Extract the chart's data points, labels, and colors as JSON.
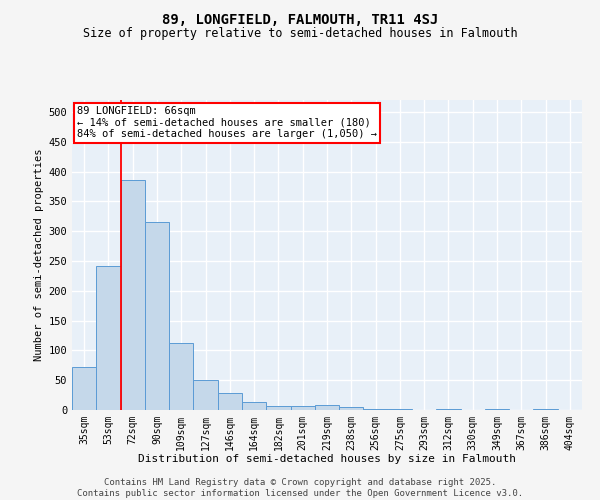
{
  "title1": "89, LONGFIELD, FALMOUTH, TR11 4SJ",
  "title2": "Size of property relative to semi-detached houses in Falmouth",
  "xlabel": "Distribution of semi-detached houses by size in Falmouth",
  "ylabel": "Number of semi-detached properties",
  "categories": [
    "35sqm",
    "53sqm",
    "72sqm",
    "90sqm",
    "109sqm",
    "127sqm",
    "146sqm",
    "164sqm",
    "182sqm",
    "201sqm",
    "219sqm",
    "238sqm",
    "256sqm",
    "275sqm",
    "293sqm",
    "312sqm",
    "330sqm",
    "349sqm",
    "367sqm",
    "386sqm",
    "404sqm"
  ],
  "values": [
    72,
    242,
    385,
    315,
    113,
    50,
    29,
    14,
    7,
    7,
    8,
    5,
    2,
    1,
    0,
    2,
    0,
    1,
    0,
    1,
    0
  ],
  "bar_color": "#c5d8ea",
  "bar_edge_color": "#5b9bd5",
  "red_line_x": 1.5,
  "annotation_title": "89 LONGFIELD: 66sqm",
  "annotation_line1": "← 14% of semi-detached houses are smaller (180)",
  "annotation_line2": "84% of semi-detached houses are larger (1,050) →",
  "ylim": [
    0,
    520
  ],
  "yticks": [
    0,
    50,
    100,
    150,
    200,
    250,
    300,
    350,
    400,
    450,
    500
  ],
  "footer1": "Contains HM Land Registry data © Crown copyright and database right 2025.",
  "footer2": "Contains public sector information licensed under the Open Government Licence v3.0.",
  "background_color": "#e8f0f8",
  "grid_color": "#ffffff",
  "fig_background": "#f5f5f5"
}
